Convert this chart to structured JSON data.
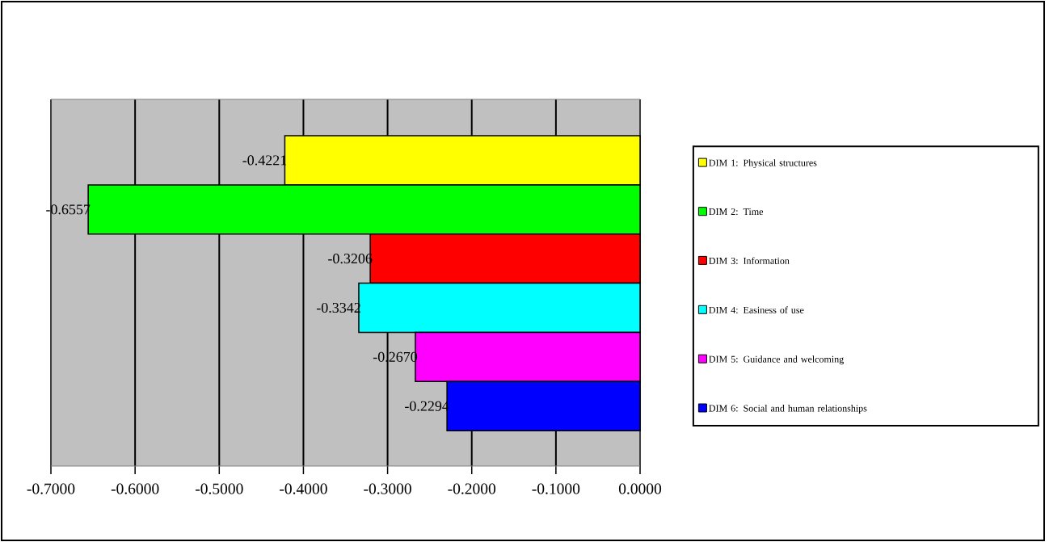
{
  "chart_data": {
    "type": "bar",
    "orientation": "horizontal",
    "categories": [
      null
    ],
    "series": [
      {
        "name": "DIM 1: Physical structures",
        "color": "#ffff00",
        "values": [
          -0.4221
        ],
        "value_labels": [
          "-0.4221"
        ]
      },
      {
        "name": "DIM 2: Time",
        "color": "#00ff00",
        "values": [
          -0.6557
        ],
        "value_labels": [
          "-0.6557"
        ]
      },
      {
        "name": "DIM 3: Information",
        "color": "#ff0000",
        "values": [
          -0.3206
        ],
        "value_labels": [
          "-0.3206"
        ]
      },
      {
        "name": "DIM 4: Easiness of use",
        "color": "#00ffff",
        "values": [
          -0.3342
        ],
        "value_labels": [
          "-0.3342"
        ]
      },
      {
        "name": "DIM 5: Guidance and welcoming",
        "color": "#ff00ff",
        "values": [
          -0.267
        ],
        "value_labels": [
          "-0.2670"
        ]
      },
      {
        "name": "DIM 6: Social and human relationships",
        "color": "#0000ff",
        "values": [
          -0.2294
        ],
        "value_labels": [
          "-0.2294"
        ]
      }
    ],
    "xlim": [
      -0.7,
      0
    ],
    "xticks": [
      {
        "value": -0.7,
        "label": "-0.7000"
      },
      {
        "value": -0.6,
        "label": "-0.6000"
      },
      {
        "value": -0.5,
        "label": "-0.5000"
      },
      {
        "value": -0.4,
        "label": "-0.4000"
      },
      {
        "value": -0.3,
        "label": "-0.3000"
      },
      {
        "value": -0.2,
        "label": "-0.2000"
      },
      {
        "value": -0.1,
        "label": "-0.1000"
      },
      {
        "value": 0,
        "label": "0.0000"
      }
    ],
    "grid": "x",
    "legend": "right"
  }
}
